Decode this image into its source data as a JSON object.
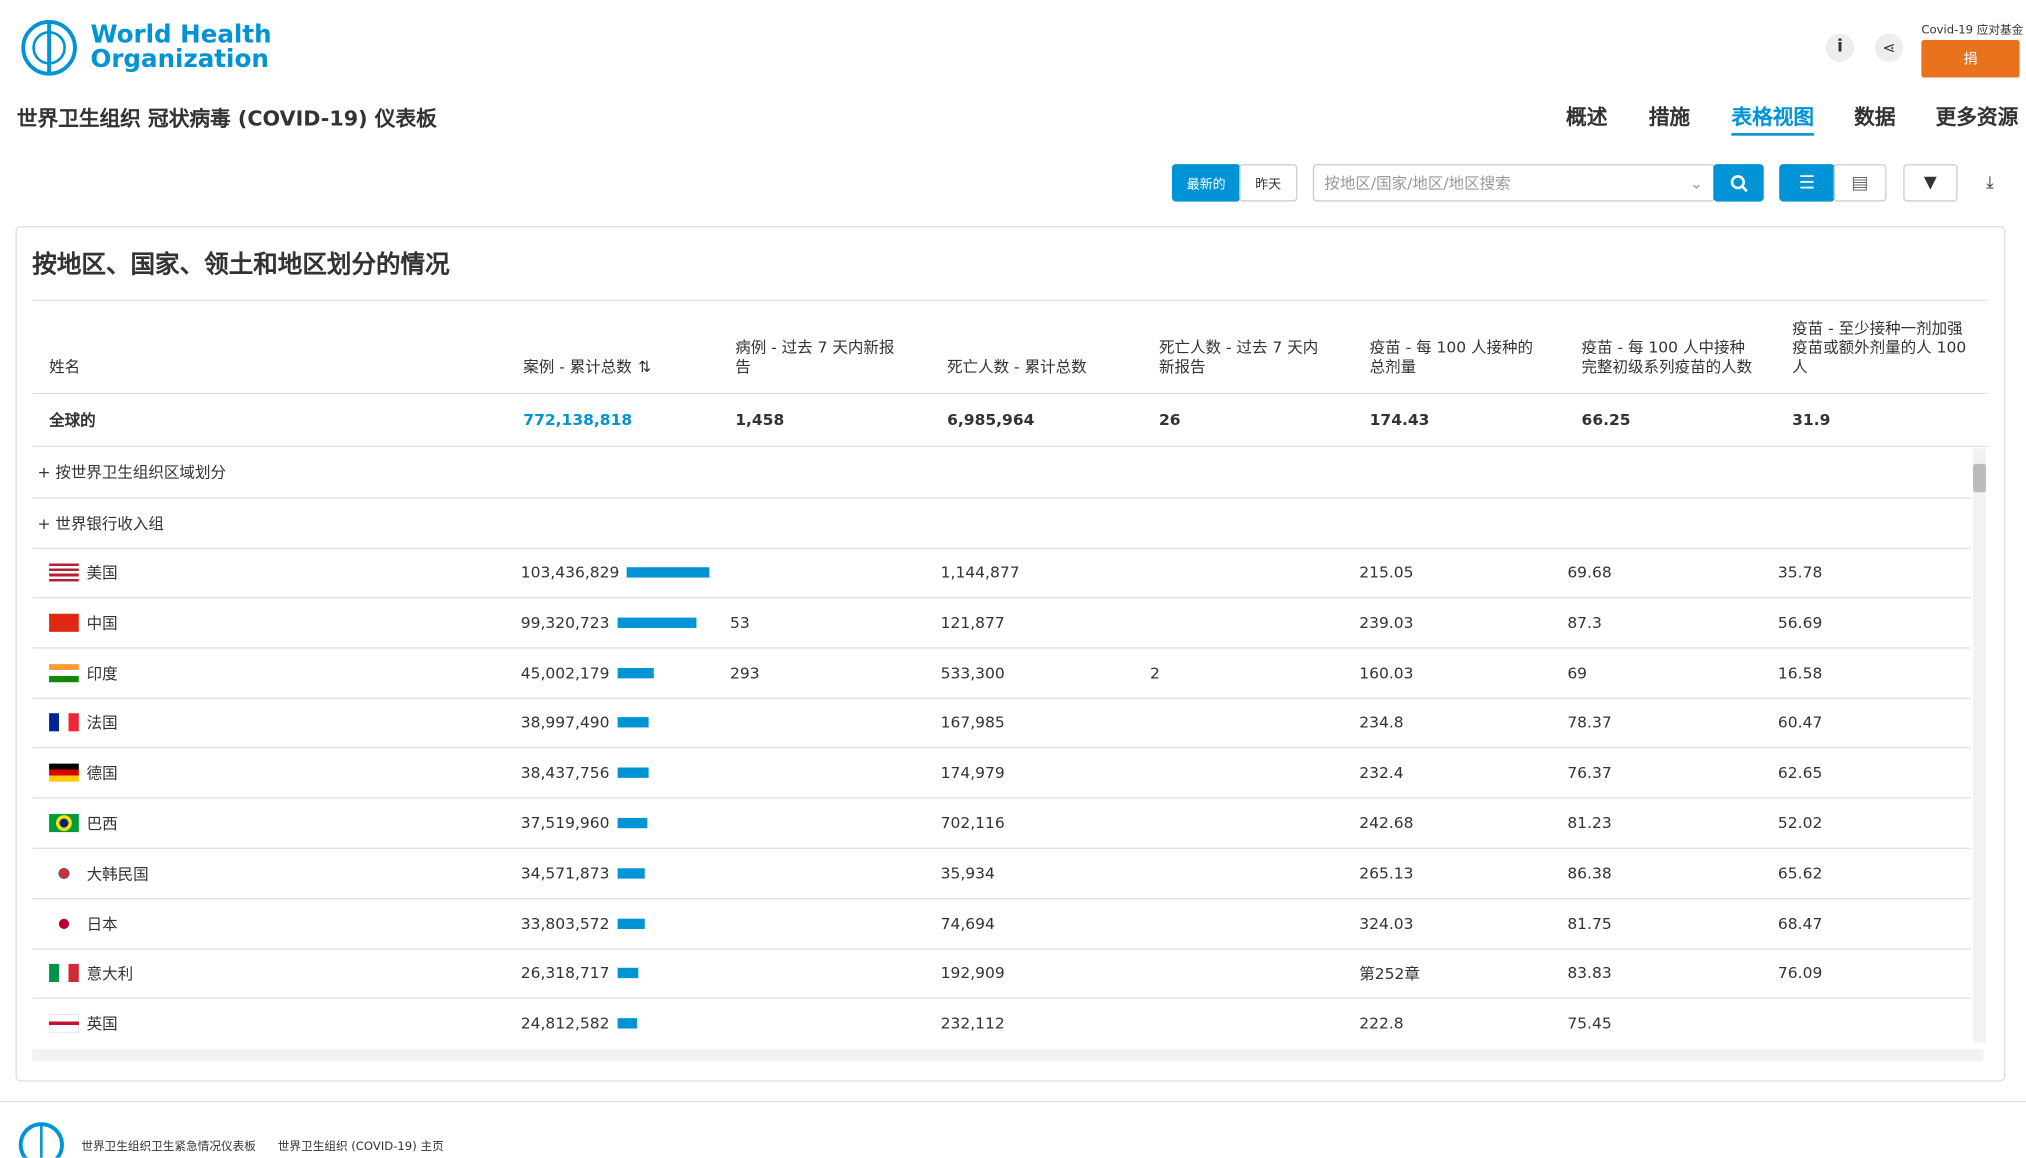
{
  "header": {
    "logo_line1": "World Health",
    "logo_line2": "Organization",
    "title": "世界卫生组织 冠状病毒 (COVID-19) 仪表板",
    "fund_label": "Covid-19 应对基金",
    "donate": "捐",
    "nav": [
      "概述",
      "措施",
      "表格视图",
      "数据",
      "更多资源"
    ],
    "nav_active": 2
  },
  "toolbar": {
    "toggle": [
      "最新的",
      "昨天"
    ],
    "search_placeholder": "按地区/国家/地区/地区搜索"
  },
  "table": {
    "title": "按地区、国家、领土和地区划分的情况",
    "columns": [
      "姓名",
      "案例 - 累计总数",
      "病例 - 过去 7 天内新报告",
      "死亡人数 - 累计总数",
      "死亡人数 - 过去 7 天内新报告",
      "疫苗 - 每 100 人接种的总剂量",
      "疫苗 - 每 100 人中接种完整初级系列疫苗的人数",
      "疫苗 - 至少接种一剂加强疫苗或额外剂量的人 100 人"
    ],
    "global": [
      "全球的",
      "772,138,818",
      "1,458",
      "6,985,964",
      "26",
      "174.43",
      "66.25",
      "31.9"
    ],
    "groups": [
      "+ 按世界卫生组织区域划分",
      "+ 世界银行收入组"
    ],
    "rows": [
      {
        "name": "美国",
        "cases": {
          "value": 103436829,
          "label": "103,436,829"
        },
        "new_cases": null,
        "deaths": "1,144,877",
        "new_deaths": null,
        "vacc": "215.05",
        "full": "69.68",
        "booster": "35.78"
      },
      {
        "name": "中国",
        "cases": {
          "value": 99320723,
          "label": "99,320,723"
        },
        "new_cases": "53",
        "deaths": "121,877",
        "new_deaths": null,
        "vacc": "239.03",
        "full": "87.3",
        "booster": "56.69"
      },
      {
        "name": "印度",
        "cases": {
          "value": 45002179,
          "label": "45,002,179"
        },
        "new_cases": "293",
        "deaths": "533,300",
        "new_deaths": "2",
        "vacc": "160.03",
        "full": "69",
        "booster": "16.58"
      },
      {
        "name": "法国",
        "cases": {
          "value": 38997490,
          "label": "38,997,490"
        },
        "new_cases": null,
        "deaths": "167,985",
        "new_deaths": null,
        "vacc": "234.8",
        "full": "78.37",
        "booster": "60.47"
      },
      {
        "name": "德国",
        "cases": {
          "value": 38437756,
          "label": "38,437,756"
        },
        "new_cases": null,
        "deaths": "174,979",
        "new_deaths": null,
        "vacc": "232.4",
        "full": "76.37",
        "booster": "62.65"
      },
      {
        "name": "巴西",
        "cases": {
          "value": 37519960,
          "label": "37,519,960"
        },
        "new_cases": null,
        "deaths": "702,116",
        "new_deaths": null,
        "vacc": "242.68",
        "full": "81.23",
        "booster": "52.02"
      },
      {
        "name": "大韩民国",
        "cases": {
          "value": 34571873,
          "label": "34,571,873"
        },
        "new_cases": null,
        "deaths": "35,934",
        "new_deaths": null,
        "vacc": "265.13",
        "full": "86.38",
        "booster": "65.62"
      },
      {
        "name": "日本",
        "cases": {
          "value": 33803572,
          "label": "33,803,572"
        },
        "new_cases": null,
        "deaths": "74,694",
        "new_deaths": null,
        "vacc": "324.03",
        "full": "81.75",
        "booster": "68.47"
      },
      {
        "name": "意大利",
        "cases": {
          "value": 26318717,
          "label": "26,318,717"
        },
        "new_cases": null,
        "deaths": "192,909",
        "new_deaths": null,
        "vacc": "第252章",
        "full": "83.83",
        "booster": "76.09"
      },
      {
        "name": "英国",
        "cases": {
          "value": 24812582,
          "label": "24,812,582"
        },
        "new_cases": null,
        "deaths": "232,112",
        "new_deaths": null,
        "vacc": "222.8",
        "full": "75.45",
        "booster": null
      }
    ]
  },
  "footer": {
    "links": [
      "世界卫生组织卫生紧急情况仪表板",
      "世界卫生组织 (COVID-19) 主页"
    ]
  }
}
